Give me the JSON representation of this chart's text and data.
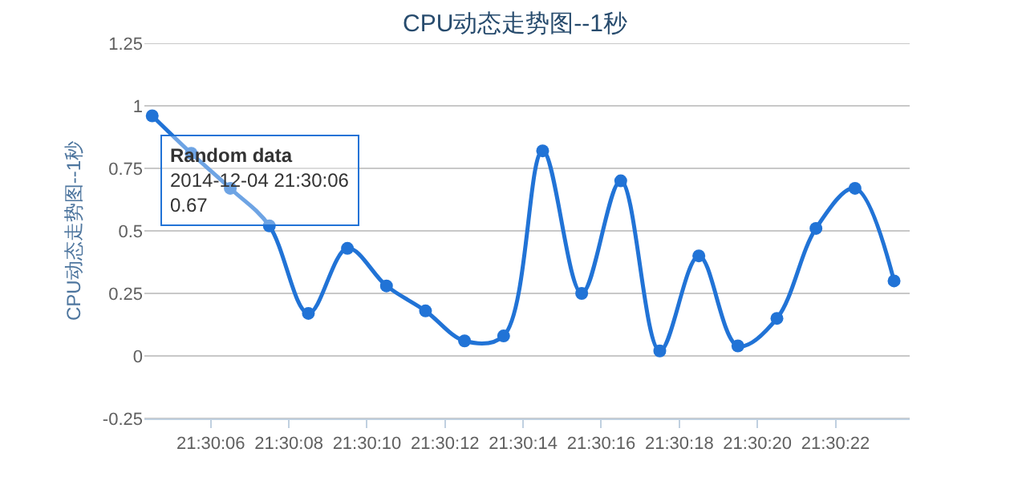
{
  "chart_data": {
    "type": "line",
    "title": "CPU动态走势图--1秒",
    "ylabel": "CPU动态走势图--1秒",
    "x": [
      "2014-12-04T21:30:04.5",
      "2014-12-04T21:30:05.5",
      "2014-12-04T21:30:06.5",
      "2014-12-04T21:30:07.5",
      "2014-12-04T21:30:08.5",
      "2014-12-04T21:30:09.5",
      "2014-12-04T21:30:10.5",
      "2014-12-04T21:30:11.5",
      "2014-12-04T21:30:12.5",
      "2014-12-04T21:30:13.5",
      "2014-12-04T21:30:14.5",
      "2014-12-04T21:30:15.5",
      "2014-12-04T21:30:16.5",
      "2014-12-04T21:30:17.5",
      "2014-12-04T21:30:18.5",
      "2014-12-04T21:30:19.5",
      "2014-12-04T21:30:20.5",
      "2014-12-04T21:30:21.5",
      "2014-12-04T21:30:22.5",
      "2014-12-04T21:30:23.5"
    ],
    "series": [
      {
        "color": "#2173d6",
        "values": [
          0.96,
          0.81,
          0.67,
          0.52,
          0.17,
          0.43,
          0.28,
          0.18,
          0.06,
          0.08,
          0.82,
          0.25,
          0.7,
          0.02,
          0.4,
          0.04,
          0.15,
          0.51,
          0.67,
          0.3
        ]
      }
    ],
    "xlim": [
      "2014-12-04T21:30:04.3",
      "2014-12-04T21:30:23.9"
    ],
    "xticks": [
      {
        "value": "2014-12-04T21:30:06",
        "label": "21:30:06"
      },
      {
        "value": "2014-12-04T21:30:08",
        "label": "21:30:08"
      },
      {
        "value": "2014-12-04T21:30:10",
        "label": "21:30:10"
      },
      {
        "value": "2014-12-04T21:30:12",
        "label": "21:30:12"
      },
      {
        "value": "2014-12-04T21:30:14",
        "label": "21:30:14"
      },
      {
        "value": "2014-12-04T21:30:16",
        "label": "21:30:16"
      },
      {
        "value": "2014-12-04T21:30:18",
        "label": "21:30:18"
      },
      {
        "value": "2014-12-04T21:30:20",
        "label": "21:30:20"
      },
      {
        "value": "2014-12-04T21:30:22",
        "label": "21:30:22"
      }
    ],
    "ylim": [
      -0.25,
      1.25
    ],
    "yticks": [
      -0.25,
      0,
      0.25,
      0.5,
      0.75,
      1,
      1.25
    ],
    "grid": "y",
    "marker": "circle",
    "line_style": "solid",
    "annotations": [
      {
        "text": "Random data\n2014-12-04 21:30:06\n0.67",
        "x": "2014-12-04T21:30:06.5",
        "y": 0.67
      }
    ]
  }
}
